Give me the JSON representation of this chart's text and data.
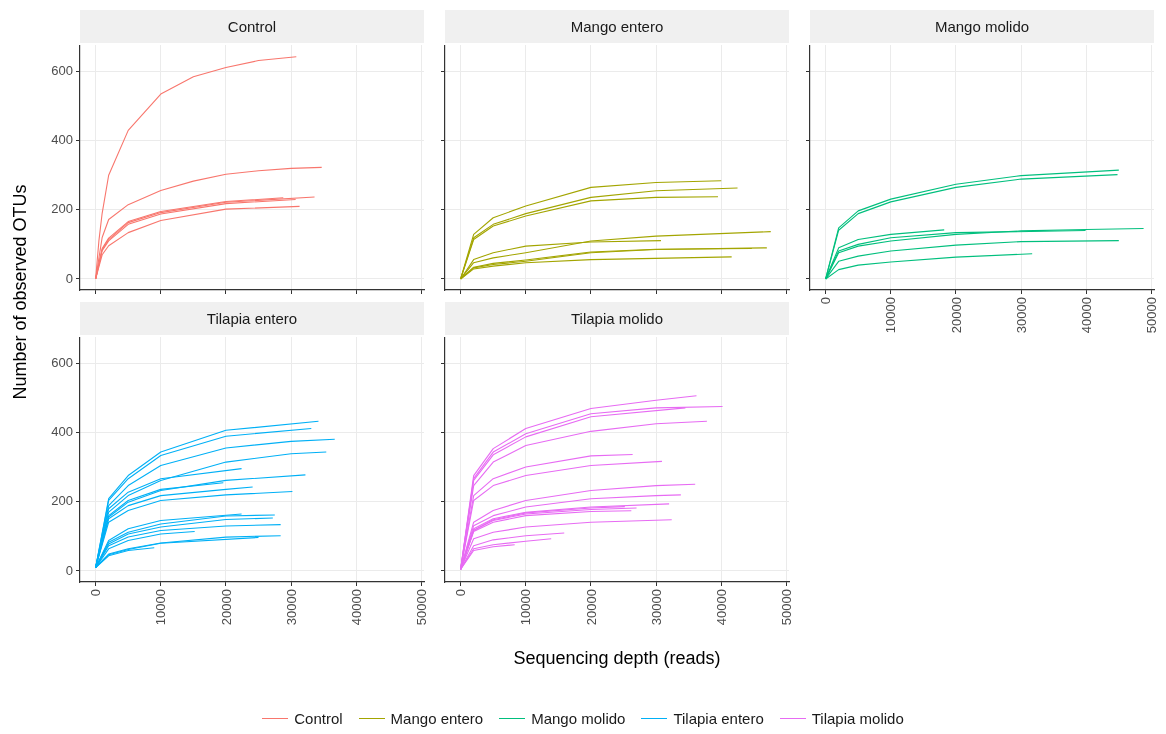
{
  "chart_data": [
    {
      "type": "line",
      "title": "Control",
      "xlim": [
        -2400,
        50400
      ],
      "ylim": [
        -32,
        677
      ],
      "xticks": [
        0,
        10000,
        20000,
        30000,
        40000,
        50000
      ],
      "yticks": [
        0,
        200,
        400,
        600
      ],
      "grid": true,
      "legend": "bottom",
      "tick_labels": "y",
      "series": [
        {
          "name": "Control",
          "color": "#f8766d",
          "x": [
            0,
            500,
            1000,
            2000,
            5000,
            10000,
            15000,
            20000,
            25000,
            30800
          ],
          "values": [
            0,
            110,
            190,
            300,
            430,
            535,
            585,
            612,
            632,
            643
          ]
        },
        {
          "color": "#f8766d",
          "x": [
            0,
            1000,
            2000,
            5000,
            10000,
            15000,
            20000,
            25000,
            30000,
            34700
          ],
          "values": [
            0,
            120,
            172,
            215,
            256,
            283,
            303,
            313,
            320,
            323
          ]
        },
        {
          "color": "#f8766d",
          "x": [
            0,
            1000,
            2000,
            5000,
            10000,
            20000,
            33600
          ],
          "values": [
            0,
            85,
            114,
            163,
            192,
            222,
            237
          ]
        },
        {
          "color": "#f8766d",
          "x": [
            0,
            1000,
            2000,
            5000,
            10000,
            20000,
            30700
          ],
          "values": [
            0,
            82,
            110,
            158,
            188,
            218,
            230
          ]
        },
        {
          "color": "#f8766d",
          "x": [
            0,
            1000,
            2000,
            5000,
            10000,
            20000,
            28800
          ],
          "values": [
            0,
            88,
            118,
            166,
            195,
            224,
            235
          ]
        },
        {
          "color": "#f8766d",
          "x": [
            0,
            1000,
            2000,
            5000,
            10000,
            20000,
            31300
          ],
          "values": [
            0,
            70,
            96,
            134,
            169,
            202,
            210
          ]
        }
      ]
    },
    {
      "type": "line",
      "title": "Mango entero",
      "xlim": [
        -2400,
        50400
      ],
      "ylim": [
        -32,
        677
      ],
      "xticks": [
        0,
        10000,
        20000,
        30000,
        40000,
        50000
      ],
      "yticks": [
        0,
        200,
        400,
        600
      ],
      "grid": true,
      "legend": "bottom",
      "tick_labels": false,
      "series": [
        {
          "name": "Mango entero",
          "color": "#a3a500",
          "x": [
            0,
            2000,
            5000,
            10000,
            20000,
            30000,
            40000
          ],
          "values": [
            0,
            129,
            177,
            211,
            265,
            279,
            284
          ]
        },
        {
          "color": "#a3a500",
          "x": [
            0,
            2000,
            5000,
            10000,
            20000,
            30000,
            42500
          ],
          "values": [
            0,
            119,
            158,
            189,
            236,
            255,
            263
          ]
        },
        {
          "color": "#a3a500",
          "x": [
            0,
            2000,
            5000,
            10000,
            20000,
            30000,
            39500
          ],
          "values": [
            0,
            114,
            153,
            182,
            226,
            236,
            238
          ]
        },
        {
          "color": "#a3a500",
          "x": [
            0,
            2000,
            5000,
            10000,
            20000,
            30000,
            47600
          ],
          "values": [
            0,
            47,
            61,
            76,
            110,
            124,
            137
          ]
        },
        {
          "color": "#a3a500",
          "x": [
            0,
            2000,
            5000,
            10000,
            20000,
            30750
          ],
          "values": [
            0,
            56,
            76,
            95,
            107,
            111
          ]
        },
        {
          "color": "#a3a500",
          "x": [
            0,
            2000,
            5000,
            10000,
            20000,
            30000,
            47000
          ],
          "values": [
            0,
            32,
            42,
            51,
            76,
            85,
            90
          ]
        },
        {
          "color": "#a3a500",
          "x": [
            0,
            2000,
            5000,
            10000,
            20000,
            30000,
            44700
          ],
          "values": [
            0,
            34,
            45,
            55,
            78,
            86,
            88
          ]
        },
        {
          "color": "#a3a500",
          "x": [
            0,
            2000,
            5000,
            10000,
            20000,
            41600
          ],
          "values": [
            0,
            29,
            37,
            47,
            56,
            64
          ]
        }
      ]
    },
    {
      "type": "line",
      "title": "Mango molido",
      "xlim": [
        -2400,
        50400
      ],
      "ylim": [
        -32,
        677
      ],
      "xticks": [
        0,
        10000,
        20000,
        30000,
        40000,
        50000
      ],
      "yticks": [
        0,
        200,
        400,
        600
      ],
      "grid": true,
      "legend": "bottom",
      "tick_labels": "x",
      "series": [
        {
          "name": "Mango molido",
          "color": "#00bf7d",
          "x": [
            0,
            2000,
            5000,
            10000,
            20000,
            30000,
            45000
          ],
          "values": [
            0,
            148,
            197,
            231,
            274,
            299,
            315
          ]
        },
        {
          "color": "#00bf7d",
          "x": [
            0,
            2000,
            5000,
            10000,
            20000,
            30000,
            44800
          ],
          "values": [
            0,
            141,
            189,
            223,
            265,
            289,
            302
          ]
        },
        {
          "color": "#00bf7d",
          "x": [
            0,
            2000,
            5000,
            10000,
            18200
          ],
          "values": [
            0,
            90,
            114,
            129,
            142
          ]
        },
        {
          "color": "#00bf7d",
          "x": [
            0,
            2000,
            5000,
            10000,
            20000,
            30000,
            40000,
            48800
          ],
          "values": [
            0,
            76,
            95,
            110,
            129,
            139,
            143,
            146
          ]
        },
        {
          "color": "#00bf7d",
          "x": [
            0,
            2000,
            5000,
            10000,
            20000,
            39900
          ],
          "values": [
            0,
            81,
            100,
            119,
            134,
            140
          ]
        },
        {
          "color": "#00bf7d",
          "x": [
            0,
            2000,
            5000,
            10000,
            20000,
            30000,
            45000
          ],
          "values": [
            0,
            51,
            66,
            81,
            98,
            108,
            111
          ]
        },
        {
          "color": "#00bf7d",
          "x": [
            0,
            2000,
            5000,
            10000,
            20000,
            31700
          ],
          "values": [
            0,
            27,
            40,
            49,
            63,
            73
          ]
        }
      ]
    },
    {
      "type": "line",
      "title": "Tilapia entero",
      "ylabel": "Number of observed OTUs",
      "xlim": [
        -2400,
        50400
      ],
      "ylim": [
        -32,
        677
      ],
      "xticks": [
        0,
        10000,
        20000,
        30000,
        40000,
        50000
      ],
      "yticks": [
        0,
        200,
        400,
        600
      ],
      "grid": true,
      "legend": "bottom",
      "series": [
        {
          "name": "Tilapia entero",
          "color": "#00b0f6",
          "x": [
            0,
            2000,
            5000,
            10000,
            20000,
            34200
          ],
          "values": [
            10,
            209,
            276,
            344,
            407,
            433
          ]
        },
        {
          "color": "#00b0f6",
          "x": [
            0,
            2000,
            5000,
            10000,
            20000,
            33100
          ],
          "values": [
            10,
            204,
            267,
            334,
            390,
            412
          ]
        },
        {
          "color": "#00b0f6",
          "x": [
            0,
            2000,
            5000,
            10000,
            20000,
            30000,
            36700
          ],
          "values": [
            10,
            189,
            247,
            305,
            356,
            375,
            381
          ]
        },
        {
          "color": "#00b0f6",
          "x": [
            0,
            2000,
            5000,
            10000,
            20000,
            30000,
            35400
          ],
          "values": [
            10,
            170,
            218,
            262,
            315,
            339,
            344
          ]
        },
        {
          "color": "#00b0f6",
          "x": [
            0,
            2000,
            5000,
            10000,
            22400
          ],
          "values": [
            10,
            180,
            228,
            267,
            296
          ]
        },
        {
          "color": "#00b0f6",
          "x": [
            0,
            2000,
            5000,
            10000,
            20000,
            32200
          ],
          "values": [
            10,
            156,
            199,
            233,
            262,
            278
          ]
        },
        {
          "color": "#00b0f6",
          "x": [
            0,
            2000,
            5000,
            10000,
            20000,
            24100
          ],
          "values": [
            10,
            151,
            189,
            218,
            236,
            243
          ]
        },
        {
          "color": "#00b0f6",
          "x": [
            0,
            2000,
            5000,
            10000,
            19600
          ],
          "values": [
            10,
            160,
            204,
            236,
            255
          ]
        },
        {
          "color": "#00b0f6",
          "x": [
            0,
            2000,
            5000,
            10000,
            20000,
            30200
          ],
          "values": [
            10,
            141,
            175,
            204,
            220,
            230
          ]
        },
        {
          "color": "#00b0f6",
          "x": [
            0,
            2000,
            5000,
            10000,
            20000,
            27500
          ],
          "values": [
            10,
            83,
            112,
            136,
            159,
            162
          ]
        },
        {
          "color": "#00b0f6",
          "x": [
            0,
            2000,
            5000,
            10000,
            22400
          ],
          "values": [
            10,
            88,
            122,
            146,
            165
          ]
        },
        {
          "color": "#00b0f6",
          "x": [
            0,
            2000,
            5000,
            10000,
            20000,
            28400
          ],
          "values": [
            10,
            73,
            98,
            117,
            130,
            134
          ]
        },
        {
          "color": "#00b0f6",
          "x": [
            0,
            2000,
            5000,
            10000,
            20000,
            27200
          ],
          "values": [
            10,
            78,
            107,
            127,
            149,
            153
          ]
        },
        {
          "color": "#00b0f6",
          "x": [
            0,
            2000,
            5000,
            10000,
            15200
          ],
          "values": [
            10,
            64,
            88,
            107,
            114
          ]
        },
        {
          "color": "#00b0f6",
          "x": [
            0,
            2000,
            5000,
            10000,
            20000,
            28400
          ],
          "values": [
            10,
            49,
            64,
            81,
            98,
            102
          ]
        },
        {
          "color": "#00b0f6",
          "x": [
            0,
            2000,
            5000,
            9000
          ],
          "values": [
            10,
            44,
            59,
            67
          ]
        },
        {
          "color": "#00b0f6",
          "x": [
            0,
            2000,
            5000,
            10000,
            25000
          ],
          "values": [
            10,
            47,
            62,
            80,
            97
          ]
        }
      ]
    },
    {
      "type": "line",
      "title": "Tilapia molido",
      "xlabel": "Sequencing depth (reads)",
      "xlim": [
        -2400,
        50400
      ],
      "ylim": [
        -32,
        677
      ],
      "xticks": [
        0,
        10000,
        20000,
        30000,
        40000,
        50000
      ],
      "yticks": [
        0,
        200,
        400,
        600
      ],
      "grid": true,
      "legend": "bottom",
      "tick_labels": "x",
      "series": [
        {
          "name": "Tilapia molido",
          "color": "#e76bf3",
          "x": [
            0,
            2000,
            5000,
            10000,
            20000,
            30000,
            36200
          ],
          "values": [
            5,
            276,
            354,
            412,
            470,
            494,
            507
          ]
        },
        {
          "color": "#e76bf3",
          "x": [
            0,
            2000,
            5000,
            10000,
            20000,
            30000,
            40200
          ],
          "values": [
            5,
            267,
            344,
            397,
            455,
            472,
            476
          ]
        },
        {
          "color": "#e76bf3",
          "x": [
            0,
            2000,
            5000,
            10000,
            20000,
            34500
          ],
          "values": [
            5,
            262,
            336,
            388,
            446,
            472
          ]
        },
        {
          "color": "#e76bf3",
          "x": [
            0,
            2000,
            5000,
            10000,
            20000,
            30000,
            37800
          ],
          "values": [
            5,
            247,
            315,
            363,
            404,
            426,
            433
          ]
        },
        {
          "color": "#e76bf3",
          "x": [
            0,
            2000,
            5000,
            10000,
            20000,
            26400
          ],
          "values": [
            5,
            218,
            267,
            301,
            333,
            337
          ]
        },
        {
          "color": "#e76bf3",
          "x": [
            0,
            2000,
            5000,
            10000,
            20000,
            30900
          ],
          "values": [
            5,
            204,
            247,
            276,
            305,
            317
          ]
        },
        {
          "color": "#e76bf3",
          "x": [
            0,
            2000,
            5000,
            10000,
            20000,
            30000,
            36000
          ],
          "values": [
            5,
            141,
            175,
            204,
            233,
            247,
            251
          ]
        },
        {
          "color": "#e76bf3",
          "x": [
            0,
            2000,
            5000,
            10000,
            20000,
            30000,
            33800
          ],
          "values": [
            5,
            131,
            160,
            185,
            209,
            218,
            220
          ]
        },
        {
          "color": "#e76bf3",
          "x": [
            0,
            2000,
            5000,
            10000,
            20000,
            32000
          ],
          "values": [
            5,
            122,
            151,
            170,
            185,
            194
          ]
        },
        {
          "color": "#e76bf3",
          "x": [
            0,
            2000,
            5000,
            10000,
            20000,
            27000
          ],
          "values": [
            5,
            117,
            146,
            165,
            178,
            182
          ]
        },
        {
          "color": "#e76bf3",
          "x": [
            0,
            2000,
            5000,
            10000,
            20000,
            26200
          ],
          "values": [
            5,
            114,
            141,
            160,
            172,
            174
          ]
        },
        {
          "color": "#e76bf3",
          "x": [
            0,
            2000,
            5000,
            10000,
            20000,
            25200
          ],
          "values": [
            5,
            118,
            148,
            168,
            182,
            186
          ]
        },
        {
          "color": "#e76bf3",
          "x": [
            0,
            2000,
            5000,
            10000,
            20000,
            32400
          ],
          "values": [
            5,
            93,
            112,
            127,
            141,
            148
          ]
        },
        {
          "color": "#e76bf3",
          "x": [
            0,
            2000,
            5000,
            10000,
            15900
          ],
          "values": [
            5,
            73,
            90,
            102,
            110
          ]
        },
        {
          "color": "#e76bf3",
          "x": [
            0,
            2000,
            5000,
            10000,
            13900
          ],
          "values": [
            5,
            64,
            76,
            86,
            93
          ]
        },
        {
          "color": "#e76bf3",
          "x": [
            0,
            2000,
            5000,
            8300
          ],
          "values": [
            5,
            59,
            70,
            76
          ]
        }
      ]
    }
  ]
}
